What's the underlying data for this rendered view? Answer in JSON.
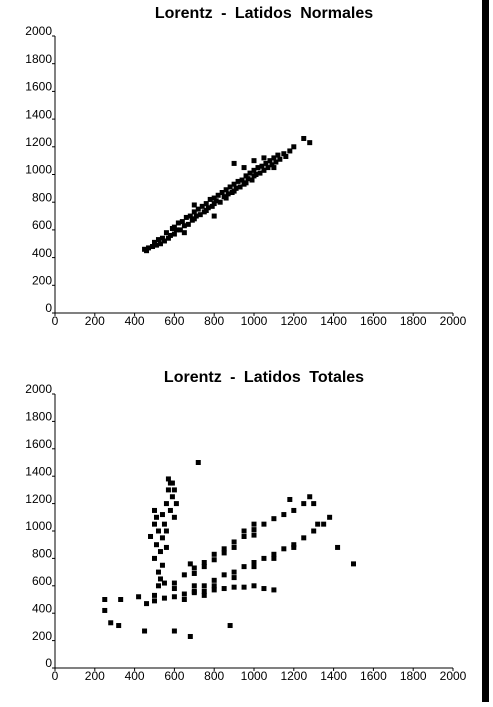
{
  "chart_data": [
    {
      "type": "scatter",
      "title": "Lorentz - Latidos Normales",
      "xlim": [
        0,
        2000
      ],
      "ylim": [
        0,
        2000
      ],
      "xticks": [
        0,
        200,
        400,
        600,
        800,
        1000,
        1200,
        1400,
        1600,
        1800,
        2000
      ],
      "yticks": [
        0,
        200,
        400,
        600,
        800,
        1000,
        1200,
        1400,
        1600,
        1800,
        2000
      ],
      "series": [
        {
          "color": "#000000",
          "x": [
            450,
            460,
            470,
            490,
            500,
            510,
            520,
            530,
            540,
            550,
            560,
            570,
            580,
            590,
            600,
            600,
            610,
            620,
            630,
            640,
            650,
            660,
            670,
            680,
            690,
            700,
            700,
            710,
            720,
            730,
            740,
            750,
            760,
            760,
            770,
            780,
            790,
            800,
            800,
            810,
            820,
            830,
            840,
            850,
            860,
            860,
            870,
            880,
            890,
            900,
            900,
            910,
            920,
            930,
            940,
            950,
            960,
            960,
            970,
            980,
            990,
            1000,
            1000,
            1010,
            1020,
            1030,
            1040,
            1050,
            1060,
            1070,
            1080,
            1090,
            1100,
            1110,
            1120,
            1130,
            1150,
            1160,
            1180,
            1200,
            1250,
            1280,
            1050,
            950,
            900,
            1000,
            800,
            650,
            700,
            1100
          ],
          "y": [
            460,
            450,
            470,
            480,
            510,
            490,
            530,
            500,
            540,
            520,
            580,
            540,
            560,
            610,
            570,
            620,
            600,
            650,
            600,
            660,
            630,
            690,
            640,
            700,
            670,
            730,
            680,
            700,
            750,
            710,
            770,
            730,
            790,
            740,
            760,
            820,
            770,
            830,
            790,
            810,
            850,
            800,
            870,
            840,
            890,
            830,
            860,
            910,
            870,
            930,
            880,
            900,
            950,
            910,
            960,
            930,
            990,
            940,
            970,
            1010,
            960,
            1030,
            990,
            1000,
            1050,
            1010,
            1060,
            1030,
            1080,
            1050,
            1100,
            1070,
            1120,
            1090,
            1140,
            1110,
            1150,
            1130,
            1170,
            1200,
            1260,
            1230,
            1120,
            1050,
            1080,
            1100,
            700,
            580,
            780,
            1050
          ]
        }
      ]
    },
    {
      "type": "scatter",
      "title": "Lorentz - Latidos Totales",
      "xlim": [
        0,
        2000
      ],
      "ylim": [
        0,
        2000
      ],
      "xticks": [
        0,
        200,
        400,
        600,
        800,
        1000,
        1200,
        1400,
        1600,
        1800,
        2000
      ],
      "yticks": [
        0,
        200,
        400,
        600,
        800,
        1000,
        1200,
        1400,
        1600,
        1800,
        2000
      ],
      "series": [
        {
          "color": "#000000",
          "x": [
            500,
            510,
            520,
            510,
            500,
            530,
            540,
            520,
            530,
            550,
            560,
            570,
            580,
            590,
            600,
            580,
            560,
            540,
            520,
            550,
            590,
            610,
            480,
            500,
            540,
            560,
            600,
            570,
            600,
            650,
            700,
            700,
            750,
            800,
            800,
            850,
            900,
            900,
            950,
            1000,
            1000,
            1050,
            1100,
            1150,
            1200,
            1250,
            1280,
            1000,
            950,
            850,
            750,
            680,
            1300,
            1180,
            700,
            750,
            800,
            850,
            900,
            950,
            1000,
            1050,
            1100,
            1150,
            1200,
            1250,
            1300,
            1350,
            1380,
            1100,
            1200,
            900,
            1000,
            1320,
            460,
            500,
            550,
            600,
            650,
            700,
            750,
            800,
            850,
            900,
            950,
            1000,
            1050,
            1100,
            600,
            700,
            800,
            650,
            500,
            750,
            250,
            280,
            320,
            250,
            330,
            420,
            450,
            600,
            680,
            1500,
            720,
            1420,
            880
          ],
          "y": [
            800,
            900,
            1000,
            1100,
            1150,
            850,
            950,
            700,
            650,
            1050,
            1200,
            1300,
            1350,
            1250,
            1300,
            1150,
            1000,
            1120,
            600,
            620,
            1350,
            1200,
            960,
            1050,
            750,
            880,
            1100,
            1380,
            620,
            680,
            730,
            690,
            770,
            830,
            790,
            870,
            920,
            880,
            960,
            1010,
            970,
            1050,
            1090,
            1120,
            1150,
            1200,
            1250,
            1050,
            1000,
            840,
            740,
            760,
            1200,
            1230,
            560,
            600,
            640,
            680,
            700,
            740,
            770,
            800,
            830,
            870,
            900,
            950,
            1000,
            1050,
            1100,
            800,
            880,
            660,
            740,
            1050,
            470,
            490,
            510,
            520,
            540,
            550,
            560,
            570,
            580,
            590,
            590,
            600,
            580,
            570,
            580,
            600,
            600,
            500,
            530,
            530,
            420,
            330,
            310,
            500,
            500,
            520,
            270,
            270,
            230,
            760,
            1500,
            880,
            310
          ]
        }
      ]
    }
  ]
}
